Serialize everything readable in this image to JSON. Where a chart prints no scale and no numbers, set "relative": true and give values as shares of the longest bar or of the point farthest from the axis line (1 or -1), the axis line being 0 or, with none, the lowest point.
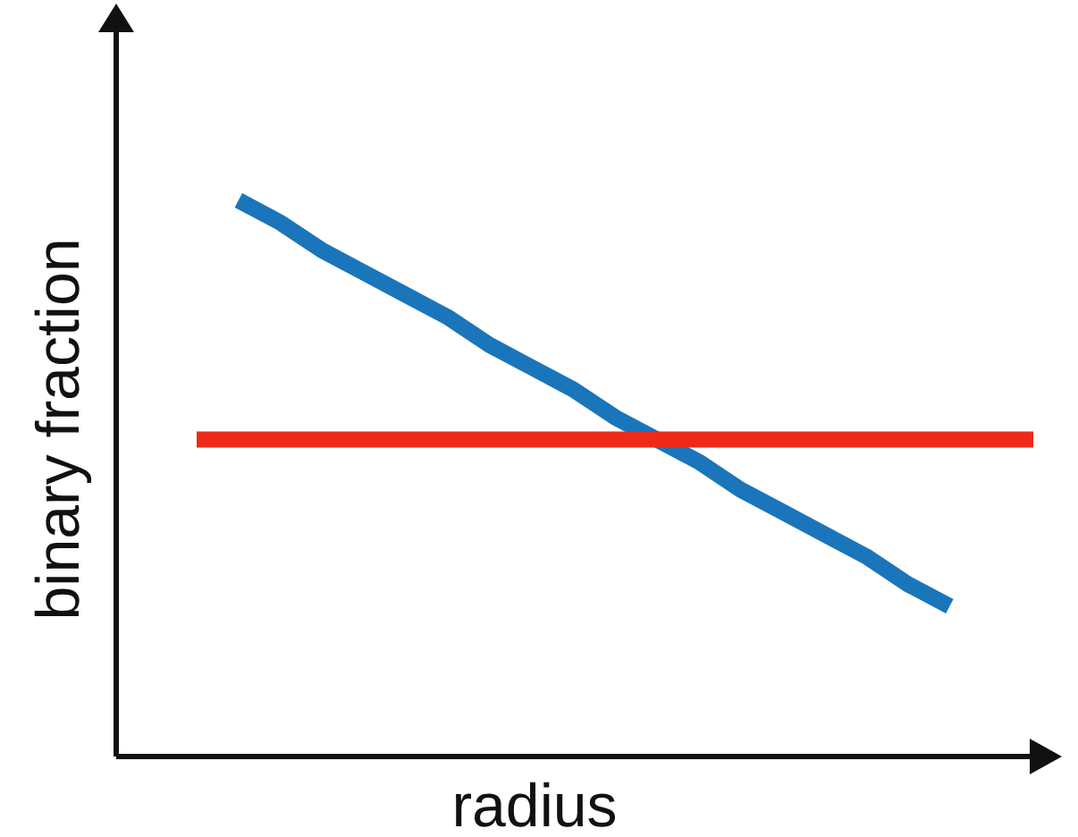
{
  "chart_data": {
    "type": "line",
    "relative": true,
    "xlabel": "radius",
    "ylabel": "binary fraction",
    "categories": [
      null,
      null,
      null,
      null,
      null,
      null,
      null,
      null,
      null,
      null,
      null,
      null,
      null,
      null,
      null,
      null,
      null,
      null,
      null,
      null,
      null
    ],
    "series": [
      {
        "color": "#1a75bb",
        "values": [
          null,
          1.0,
          0.96,
          0.91,
          0.87,
          0.83,
          0.79,
          0.74,
          0.7,
          0.66,
          0.61,
          0.57,
          0.53,
          0.48,
          0.44,
          0.4,
          0.36,
          0.31,
          0.27,
          null,
          null
        ]
      },
      {
        "color": "#ee2a1b",
        "values": [
          0.57,
          0.57,
          0.57,
          0.57,
          0.57,
          0.57,
          0.57,
          0.57,
          0.57,
          0.57,
          0.57,
          0.57,
          0.57,
          0.57,
          0.57,
          0.57,
          0.57,
          0.57,
          0.57,
          0.57,
          0.57
        ]
      }
    ]
  }
}
